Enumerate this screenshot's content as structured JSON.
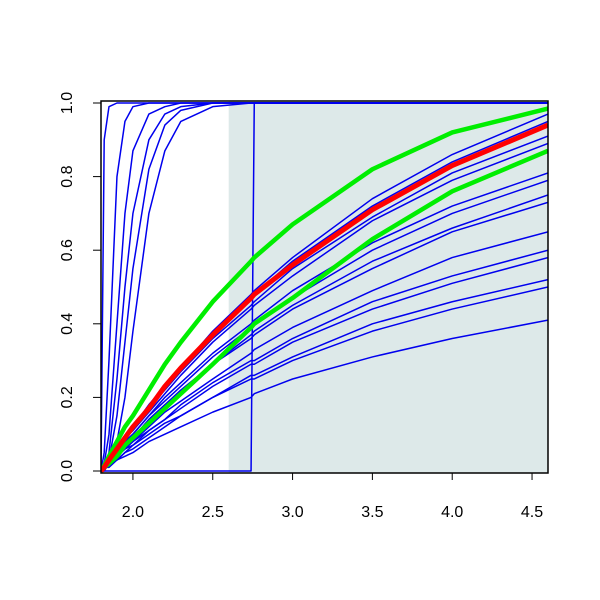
{
  "chart_data": {
    "type": "line",
    "x": [
      1.8,
      1.82,
      1.85,
      1.9,
      1.95,
      2.0,
      2.1,
      2.2,
      2.3,
      2.5,
      2.74,
      2.76,
      3.0,
      3.5,
      4.0,
      4.6
    ],
    "xlim": [
      1.8,
      4.6
    ],
    "ylim": [
      0,
      1
    ],
    "xticks": [
      {
        "value": 2,
        "label": "2.0"
      },
      2.5,
      {
        "value": 3,
        "label": "3.0"
      },
      3.5,
      {
        "value": 4,
        "label": "4.0"
      },
      4.5
    ],
    "yticks": [
      {
        "value": 0,
        "label": "0.0"
      },
      0.2,
      0.4,
      0.6,
      0.8,
      {
        "value": 1,
        "label": "1.0"
      }
    ],
    "shaded_region": {
      "xmin": 2.6,
      "xmax": 4.6,
      "color": "#dde9e9"
    },
    "series": [
      {
        "color": "#0000ee",
        "line_width": 1.5,
        "values": [
          0,
          0.9,
          0.99,
          1,
          1,
          1,
          1,
          1,
          1,
          1,
          1,
          1,
          1,
          1,
          1,
          1
        ]
      },
      {
        "color": "#0000ee",
        "line_width": 1.5,
        "values": [
          0,
          0.05,
          0.3,
          0.8,
          0.95,
          0.99,
          1,
          1,
          1,
          1,
          1,
          1,
          1,
          1,
          1,
          1
        ]
      },
      {
        "color": "#0000ee",
        "line_width": 1.5,
        "values": [
          0,
          0.02,
          0.1,
          0.4,
          0.7,
          0.87,
          0.97,
          0.99,
          1,
          1,
          1,
          1,
          1,
          1,
          1,
          1
        ]
      },
      {
        "color": "#0000ee",
        "line_width": 1.5,
        "values": [
          0,
          0.01,
          0.05,
          0.25,
          0.5,
          0.7,
          0.9,
          0.97,
          0.99,
          1,
          1,
          1,
          1,
          1,
          1,
          1
        ]
      },
      {
        "color": "#0000ee",
        "line_width": 1.5,
        "values": [
          0,
          0.01,
          0.03,
          0.15,
          0.35,
          0.55,
          0.82,
          0.94,
          0.98,
          1,
          1,
          1,
          1,
          1,
          1,
          1
        ]
      },
      {
        "color": "#0000ee",
        "line_width": 1.5,
        "values": [
          0,
          0,
          0.02,
          0.08,
          0.2,
          0.38,
          0.7,
          0.87,
          0.95,
          0.99,
          1,
          1,
          1,
          1,
          1,
          1
        ]
      },
      {
        "color": "#0000ee",
        "line_width": 1.5,
        "values": [
          0,
          0,
          0,
          0,
          0,
          0,
          0,
          0,
          0,
          0,
          0,
          1,
          1,
          1,
          1,
          1
        ]
      },
      {
        "color": "#0000ee",
        "line_width": 1.5,
        "values": [
          0,
          0.01,
          0.03,
          0.06,
          0.09,
          0.12,
          0.18,
          0.23,
          0.28,
          0.38,
          0.48,
          0.49,
          0.58,
          0.74,
          0.86,
          0.97
        ]
      },
      {
        "color": "#0000ee",
        "line_width": 1.5,
        "values": [
          0,
          0.01,
          0.03,
          0.06,
          0.09,
          0.12,
          0.18,
          0.23,
          0.28,
          0.37,
          0.47,
          0.48,
          0.57,
          0.72,
          0.84,
          0.95
        ]
      },
      {
        "color": "#0000ee",
        "line_width": 1.5,
        "values": [
          0,
          0.01,
          0.03,
          0.06,
          0.09,
          0.11,
          0.17,
          0.22,
          0.27,
          0.36,
          0.45,
          0.46,
          0.55,
          0.69,
          0.81,
          0.91
        ]
      },
      {
        "color": "#0000ee",
        "line_width": 1.5,
        "values": [
          0,
          0.01,
          0.03,
          0.06,
          0.09,
          0.11,
          0.16,
          0.21,
          0.26,
          0.35,
          0.44,
          0.45,
          0.53,
          0.68,
          0.79,
          0.89
        ]
      },
      {
        "color": "#0000ee",
        "line_width": 1.5,
        "values": [
          0,
          0.01,
          0.03,
          0.05,
          0.08,
          0.1,
          0.15,
          0.2,
          0.24,
          0.32,
          0.4,
          0.41,
          0.49,
          0.62,
          0.72,
          0.81
        ]
      },
      {
        "color": "#0000ee",
        "line_width": 1.5,
        "values": [
          0,
          0.01,
          0.03,
          0.05,
          0.08,
          0.1,
          0.15,
          0.19,
          0.23,
          0.31,
          0.39,
          0.4,
          0.47,
          0.6,
          0.7,
          0.79
        ]
      },
      {
        "color": "#0000ee",
        "line_width": 1.5,
        "values": [
          0,
          0.01,
          0.02,
          0.05,
          0.07,
          0.09,
          0.14,
          0.18,
          0.22,
          0.29,
          0.37,
          0.38,
          0.45,
          0.57,
          0.66,
          0.75
        ]
      },
      {
        "color": "#0000ee",
        "line_width": 1.5,
        "values": [
          0,
          0.01,
          0.02,
          0.05,
          0.07,
          0.09,
          0.14,
          0.18,
          0.21,
          0.29,
          0.36,
          0.37,
          0.44,
          0.55,
          0.65,
          0.73
        ]
      },
      {
        "color": "#0000ee",
        "line_width": 1.5,
        "values": [
          0,
          0.01,
          0.02,
          0.04,
          0.06,
          0.08,
          0.12,
          0.16,
          0.19,
          0.25,
          0.32,
          0.33,
          0.39,
          0.49,
          0.58,
          0.65
        ]
      },
      {
        "color": "#0000ee",
        "line_width": 1.5,
        "values": [
          0,
          0.01,
          0.02,
          0.04,
          0.06,
          0.08,
          0.11,
          0.14,
          0.18,
          0.24,
          0.3,
          0.3,
          0.36,
          0.46,
          0.53,
          0.6
        ]
      },
      {
        "color": "#0000ee",
        "line_width": 1.5,
        "values": [
          0,
          0.01,
          0.02,
          0.04,
          0.06,
          0.07,
          0.11,
          0.14,
          0.17,
          0.23,
          0.29,
          0.29,
          0.35,
          0.44,
          0.51,
          0.58
        ]
      },
      {
        "color": "#0000ee",
        "line_width": 1.5,
        "values": [
          0,
          0.01,
          0.02,
          0.03,
          0.05,
          0.07,
          0.1,
          0.13,
          0.15,
          0.2,
          0.26,
          0.26,
          0.31,
          0.4,
          0.46,
          0.52
        ]
      },
      {
        "color": "#0000ee",
        "line_width": 1.5,
        "values": [
          0,
          0.01,
          0.02,
          0.03,
          0.05,
          0.06,
          0.09,
          0.12,
          0.15,
          0.2,
          0.25,
          0.25,
          0.3,
          0.38,
          0.44,
          0.5
        ]
      },
      {
        "color": "#0000ee",
        "line_width": 1.5,
        "values": [
          0,
          0.01,
          0.01,
          0.03,
          0.04,
          0.05,
          0.08,
          0.1,
          0.12,
          0.16,
          0.2,
          0.21,
          0.25,
          0.31,
          0.36,
          0.41
        ]
      },
      {
        "color": "#00ee00",
        "line_width": 4.5,
        "values": [
          0,
          0.015,
          0.04,
          0.08,
          0.12,
          0.15,
          0.22,
          0.29,
          0.35,
          0.46,
          0.57,
          0.58,
          0.67,
          0.82,
          0.92,
          0.985
        ]
      },
      {
        "color": "#00ee00",
        "line_width": 4.5,
        "values": [
          0,
          0.01,
          0.02,
          0.04,
          0.07,
          0.09,
          0.13,
          0.17,
          0.21,
          0.29,
          0.39,
          0.4,
          0.47,
          0.63,
          0.76,
          0.87
        ]
      },
      {
        "color": "#ff0000",
        "line_width": 5,
        "values": [
          0,
          0.01,
          0.03,
          0.06,
          0.09,
          0.12,
          0.17,
          0.23,
          0.28,
          0.37,
          0.47,
          0.48,
          0.56,
          0.71,
          0.83,
          0.94
        ]
      }
    ]
  }
}
